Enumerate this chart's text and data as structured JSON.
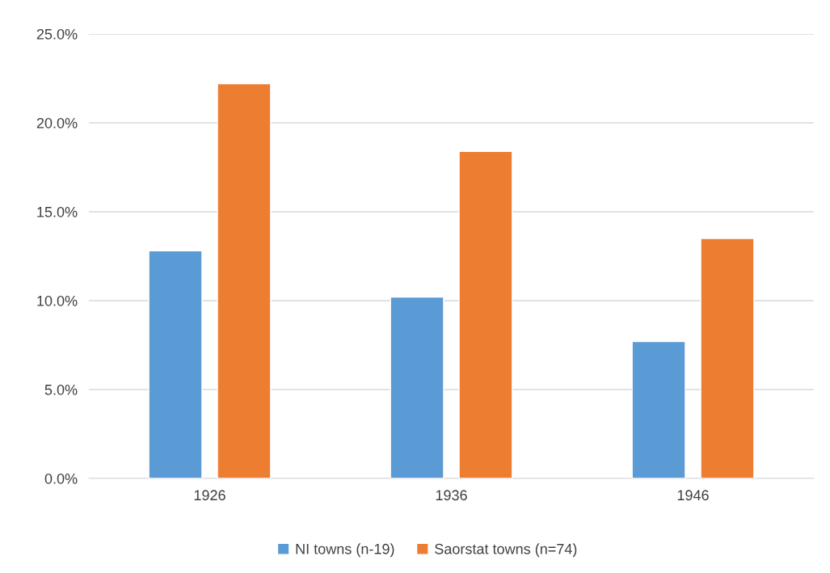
{
  "chart_data": {
    "type": "bar",
    "categories": [
      "1926",
      "1936",
      "1946"
    ],
    "series": [
      {
        "name": "NI towns (n-19)",
        "color": "#5b9bd5",
        "values": [
          12.8,
          10.2,
          7.7
        ]
      },
      {
        "name": "Saorstat towns (n=74)",
        "color": "#ed7d31",
        "values": [
          22.2,
          18.4,
          13.5
        ]
      }
    ],
    "ylim": [
      0,
      25
    ],
    "yticks": [
      {
        "value": 0,
        "label": "0.0%"
      },
      {
        "value": 5,
        "label": "5.0%"
      },
      {
        "value": 10,
        "label": "10.0%"
      },
      {
        "value": 15,
        "label": "15.0%"
      },
      {
        "value": 20,
        "label": "20.0%"
      },
      {
        "value": 25,
        "label": "25.0%"
      }
    ],
    "grid": "y",
    "legend": "bottom"
  }
}
